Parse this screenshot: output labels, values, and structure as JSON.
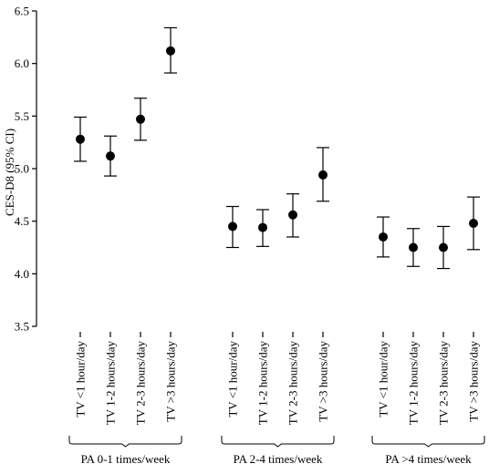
{
  "chart_data": {
    "type": "scatter",
    "ylabel": "CES-D8 (95% CI)",
    "xlabel": "",
    "ylim": [
      3.5,
      6.5
    ],
    "yticks": [
      "3.5",
      "4.0",
      "4.5",
      "5.0",
      "5.5",
      "6.0",
      "6.5"
    ],
    "grid": false,
    "legend": "none",
    "groups": [
      {
        "label": "PA 0-1 times/week",
        "points": [
          {
            "category": "TV <1 hour/day",
            "mean": 5.28,
            "lower": 5.07,
            "upper": 5.49
          },
          {
            "category": "TV 1-2 hours/day",
            "mean": 5.12,
            "lower": 4.93,
            "upper": 5.31
          },
          {
            "category": "TV 2-3 hours/day",
            "mean": 5.47,
            "lower": 5.27,
            "upper": 5.67
          },
          {
            "category": "TV >3 hours/day",
            "mean": 6.12,
            "lower": 5.91,
            "upper": 6.34
          }
        ]
      },
      {
        "label": "PA 2-4 times/week",
        "points": [
          {
            "category": "TV <1 hour/day",
            "mean": 4.45,
            "lower": 4.25,
            "upper": 4.64
          },
          {
            "category": "TV 1-2 hours/day",
            "mean": 4.44,
            "lower": 4.26,
            "upper": 4.61
          },
          {
            "category": "TV 2-3 hours/day",
            "mean": 4.56,
            "lower": 4.35,
            "upper": 4.76
          },
          {
            "category": "TV >3 hours/day",
            "mean": 4.94,
            "lower": 4.69,
            "upper": 5.2
          }
        ]
      },
      {
        "label": "PA >4 times/week",
        "points": [
          {
            "category": "TV <1 hour/day",
            "mean": 4.35,
            "lower": 4.16,
            "upper": 4.54
          },
          {
            "category": "TV 1-2 hours/day",
            "mean": 4.25,
            "lower": 4.07,
            "upper": 4.43
          },
          {
            "category": "TV 2-3 hours/day",
            "mean": 4.25,
            "lower": 4.05,
            "upper": 4.45
          },
          {
            "category": "TV >3 hours/day",
            "mean": 4.48,
            "lower": 4.23,
            "upper": 4.73
          }
        ]
      }
    ],
    "colors": {
      "marker": "#000000",
      "line": "#000000"
    }
  }
}
